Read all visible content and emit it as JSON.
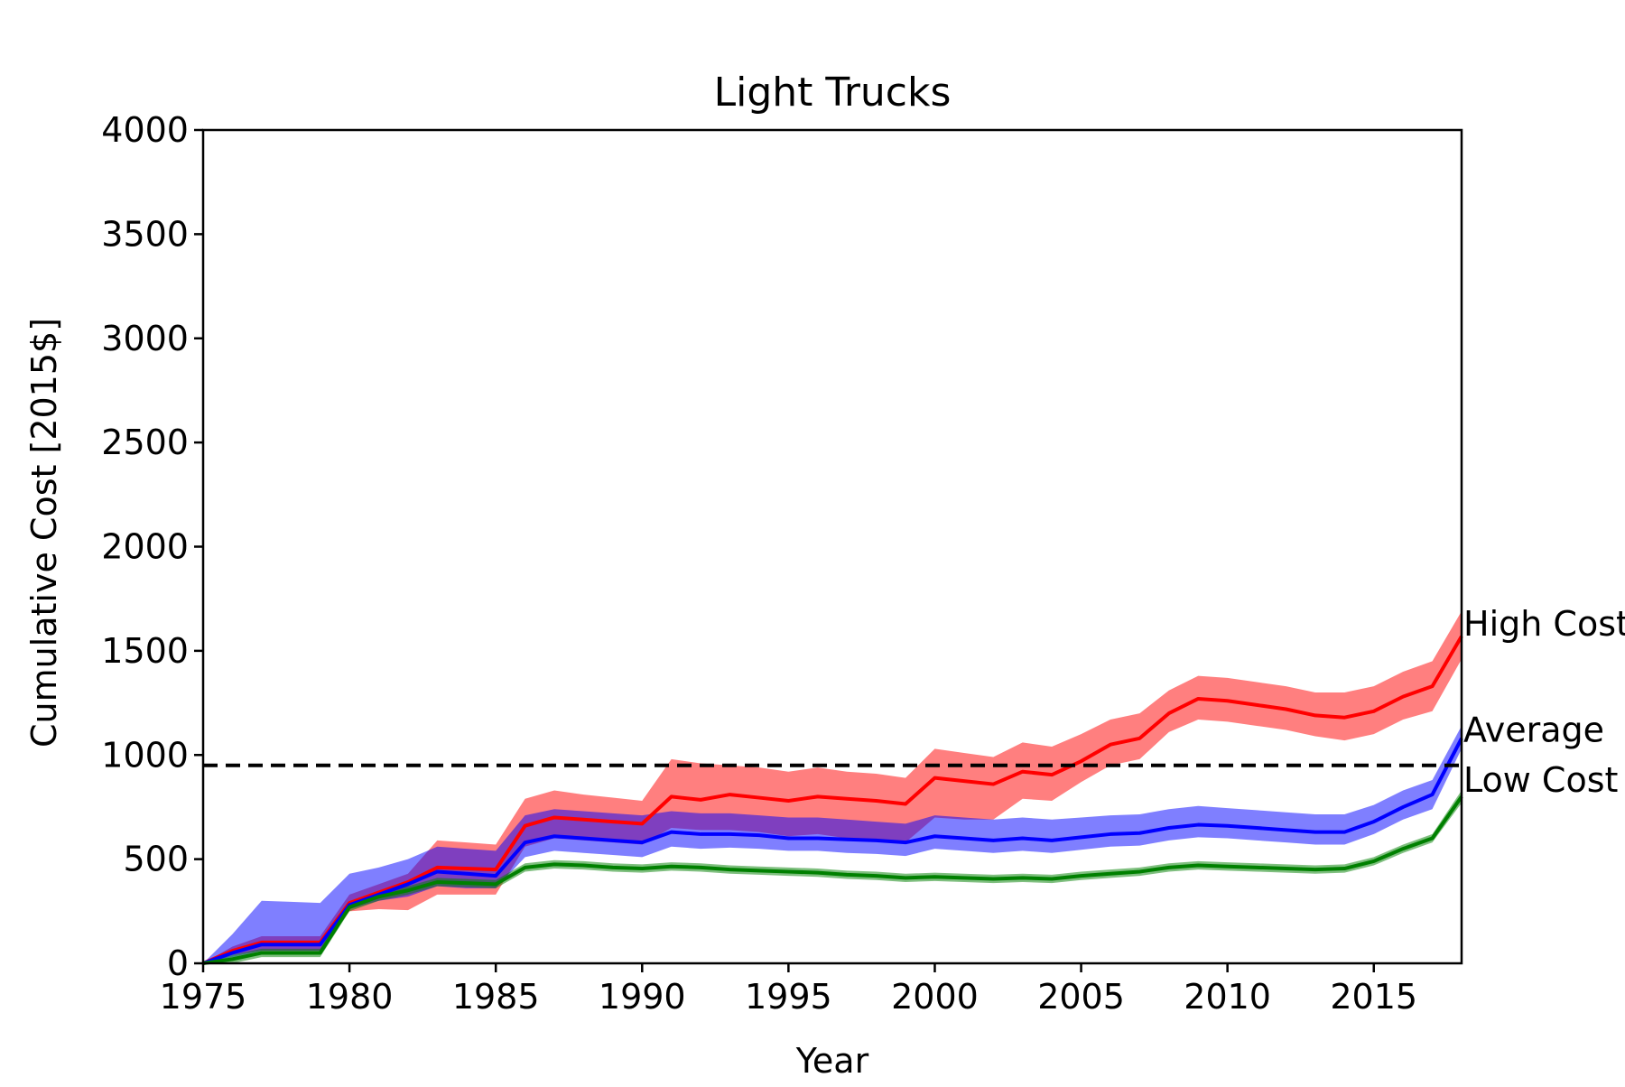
{
  "chart_data": {
    "type": "line",
    "title": "Light Trucks",
    "xlabel": "Year",
    "ylabel": "Cumulative Cost [2015$]",
    "xlim": [
      1975,
      2018
    ],
    "ylim": [
      0,
      4000
    ],
    "xticks": [
      1975,
      1980,
      1985,
      1990,
      1995,
      2000,
      2005,
      2010,
      2015
    ],
    "yticks": [
      0,
      500,
      1000,
      1500,
      2000,
      2500,
      3000,
      3500,
      4000
    ],
    "grid": false,
    "reference_line": {
      "y": 950,
      "style": "dashed",
      "color": "#000000"
    },
    "x": [
      1975,
      1976,
      1977,
      1978,
      1979,
      1980,
      1981,
      1982,
      1983,
      1984,
      1985,
      1986,
      1987,
      1988,
      1989,
      1990,
      1991,
      1992,
      1993,
      1994,
      1995,
      1996,
      1997,
      1998,
      1999,
      2000,
      2001,
      2002,
      2003,
      2004,
      2005,
      2006,
      2007,
      2008,
      2009,
      2010,
      2011,
      2012,
      2013,
      2014,
      2015,
      2016,
      2017,
      2018
    ],
    "series": [
      {
        "name": "High Cost",
        "color": "#ff0000",
        "values": [
          0,
          60,
          100,
          100,
          100,
          290,
          340,
          390,
          460,
          455,
          450,
          660,
          700,
          690,
          680,
          670,
          800,
          785,
          810,
          795,
          780,
          800,
          790,
          780,
          765,
          890,
          875,
          860,
          920,
          905,
          970,
          1050,
          1080,
          1200,
          1270,
          1260,
          1240,
          1220,
          1190,
          1180,
          1210,
          1280,
          1330,
          1570
        ],
        "band": [
          [
            0,
            0
          ],
          [
            40,
            80
          ],
          [
            60,
            130
          ],
          [
            60,
            130
          ],
          [
            60,
            130
          ],
          [
            250,
            330
          ],
          [
            260,
            380
          ],
          [
            255,
            430
          ],
          [
            330,
            590
          ],
          [
            330,
            580
          ],
          [
            330,
            570
          ],
          [
            560,
            790
          ],
          [
            600,
            830
          ],
          [
            590,
            810
          ],
          [
            580,
            795
          ],
          [
            570,
            780
          ],
          [
            650,
            980
          ],
          [
            640,
            960
          ],
          [
            640,
            950
          ],
          [
            630,
            940
          ],
          [
            610,
            920
          ],
          [
            620,
            940
          ],
          [
            600,
            920
          ],
          [
            590,
            910
          ],
          [
            580,
            890
          ],
          [
            700,
            1030
          ],
          [
            690,
            1010
          ],
          [
            690,
            990
          ],
          [
            790,
            1060
          ],
          [
            780,
            1040
          ],
          [
            870,
            1100
          ],
          [
            950,
            1170
          ],
          [
            980,
            1200
          ],
          [
            1110,
            1310
          ],
          [
            1170,
            1380
          ],
          [
            1160,
            1370
          ],
          [
            1140,
            1350
          ],
          [
            1120,
            1330
          ],
          [
            1090,
            1300
          ],
          [
            1070,
            1300
          ],
          [
            1100,
            1330
          ],
          [
            1170,
            1400
          ],
          [
            1210,
            1450
          ],
          [
            1460,
            1690
          ]
        ]
      },
      {
        "name": "Average",
        "color": "#0000ff",
        "values": [
          0,
          50,
          90,
          90,
          90,
          280,
          330,
          380,
          440,
          430,
          420,
          580,
          610,
          600,
          590,
          580,
          630,
          620,
          620,
          615,
          600,
          600,
          595,
          590,
          580,
          610,
          600,
          590,
          600,
          590,
          605,
          620,
          625,
          650,
          665,
          660,
          650,
          640,
          630,
          630,
          680,
          750,
          810,
          1080
        ],
        "band": [
          [
            0,
            0
          ],
          [
            30,
            140
          ],
          [
            60,
            300
          ],
          [
            60,
            295
          ],
          [
            60,
            290
          ],
          [
            260,
            430
          ],
          [
            300,
            460
          ],
          [
            320,
            500
          ],
          [
            370,
            560
          ],
          [
            360,
            550
          ],
          [
            360,
            540
          ],
          [
            510,
            710
          ],
          [
            540,
            740
          ],
          [
            530,
            730
          ],
          [
            520,
            720
          ],
          [
            510,
            710
          ],
          [
            560,
            730
          ],
          [
            550,
            720
          ],
          [
            555,
            720
          ],
          [
            550,
            710
          ],
          [
            540,
            700
          ],
          [
            540,
            700
          ],
          [
            530,
            690
          ],
          [
            525,
            680
          ],
          [
            515,
            670
          ],
          [
            550,
            710
          ],
          [
            540,
            700
          ],
          [
            530,
            690
          ],
          [
            540,
            700
          ],
          [
            530,
            690
          ],
          [
            545,
            700
          ],
          [
            560,
            710
          ],
          [
            565,
            715
          ],
          [
            590,
            740
          ],
          [
            605,
            755
          ],
          [
            600,
            745
          ],
          [
            590,
            735
          ],
          [
            580,
            725
          ],
          [
            570,
            715
          ],
          [
            570,
            715
          ],
          [
            620,
            760
          ],
          [
            690,
            830
          ],
          [
            740,
            880
          ],
          [
            1030,
            1140
          ]
        ]
      },
      {
        "name": "Low Cost",
        "color": "#008000",
        "values": [
          0,
          20,
          50,
          50,
          50,
          270,
          320,
          350,
          390,
          385,
          380,
          460,
          475,
          470,
          460,
          455,
          465,
          460,
          450,
          445,
          440,
          435,
          425,
          420,
          410,
          415,
          410,
          405,
          410,
          405,
          420,
          430,
          440,
          460,
          470,
          465,
          460,
          455,
          450,
          455,
          490,
          550,
          600,
          800
        ],
        "band": [
          [
            0,
            0
          ],
          [
            0,
            40
          ],
          [
            30,
            70
          ],
          [
            30,
            70
          ],
          [
            30,
            70
          ],
          [
            250,
            290
          ],
          [
            300,
            340
          ],
          [
            330,
            370
          ],
          [
            370,
            410
          ],
          [
            365,
            405
          ],
          [
            360,
            400
          ],
          [
            440,
            480
          ],
          [
            455,
            495
          ],
          [
            450,
            490
          ],
          [
            440,
            480
          ],
          [
            435,
            475
          ],
          [
            445,
            485
          ],
          [
            440,
            480
          ],
          [
            430,
            470
          ],
          [
            425,
            465
          ],
          [
            420,
            460
          ],
          [
            415,
            455
          ],
          [
            405,
            445
          ],
          [
            400,
            440
          ],
          [
            390,
            430
          ],
          [
            395,
            435
          ],
          [
            390,
            430
          ],
          [
            385,
            425
          ],
          [
            390,
            430
          ],
          [
            385,
            425
          ],
          [
            400,
            440
          ],
          [
            410,
            450
          ],
          [
            420,
            460
          ],
          [
            440,
            480
          ],
          [
            450,
            490
          ],
          [
            445,
            485
          ],
          [
            440,
            480
          ],
          [
            435,
            475
          ],
          [
            430,
            470
          ],
          [
            435,
            475
          ],
          [
            470,
            510
          ],
          [
            530,
            570
          ],
          [
            580,
            620
          ],
          [
            770,
            830
          ]
        ]
      }
    ],
    "annotations": [
      {
        "text": "High Cost",
        "x": 2018,
        "y": 1630
      },
      {
        "text": "Average",
        "x": 2018,
        "y": 1120
      },
      {
        "text": "Low Cost",
        "x": 2018,
        "y": 880
      }
    ]
  }
}
